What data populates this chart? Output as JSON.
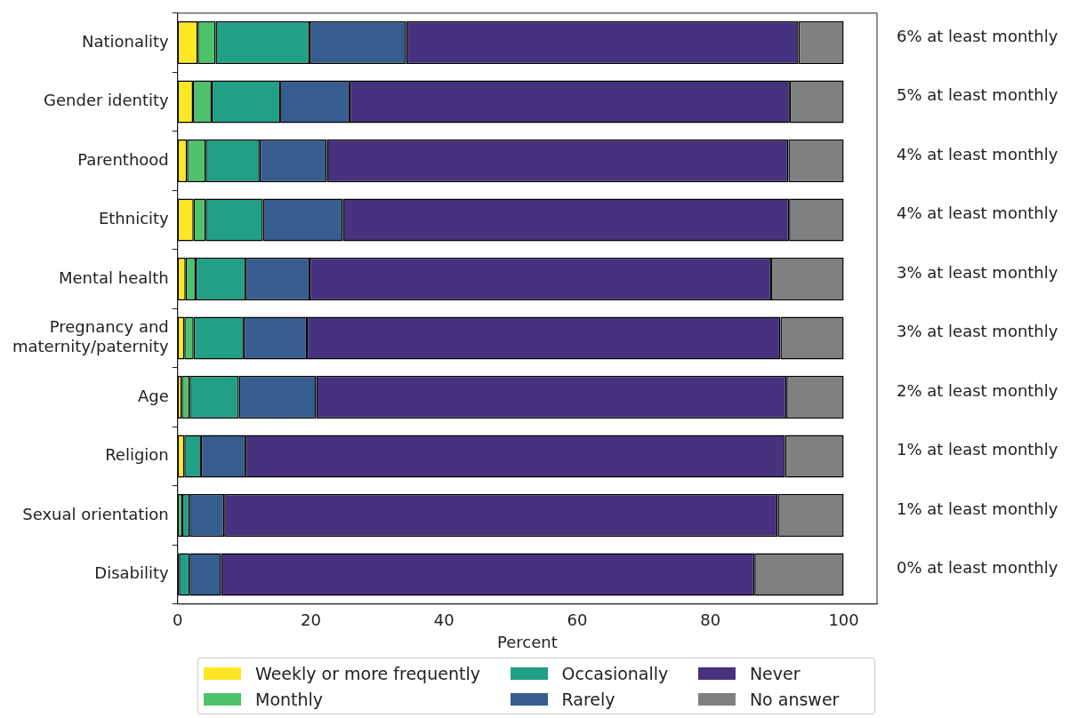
{
  "chart_data": {
    "type": "bar",
    "orientation": "horizontal",
    "stacked": true,
    "xlabel": "Percent",
    "xlim": [
      0,
      105
    ],
    "xticks": [
      0,
      20,
      40,
      60,
      80,
      100
    ],
    "grid": false,
    "legend": "bottom",
    "categories": [
      "Nationality",
      "Gender identity",
      "Parenthood",
      "Ethnicity",
      "Mental health",
      "Pregnancy and\nmaternity/paternity",
      "Age",
      "Religion",
      "Sexual orientation",
      "Disability"
    ],
    "series": [
      {
        "name": "Weekly or more frequently",
        "color": "#fde725",
        "values": [
          3.0,
          2.3,
          1.4,
          2.4,
          1.2,
          1.0,
          0.6,
          1.0,
          0,
          0
        ]
      },
      {
        "name": "Monthly",
        "color": "#4ec36b",
        "values": [
          2.7,
          2.8,
          2.8,
          1.8,
          1.5,
          1.4,
          1.2,
          0,
          0.7,
          0.2
        ]
      },
      {
        "name": "Occasionally",
        "color": "#21a085",
        "values": [
          14.1,
          10.3,
          8.1,
          8.6,
          7.5,
          7.5,
          7.4,
          2.5,
          1.1,
          1.6
        ]
      },
      {
        "name": "Rarely",
        "color": "#365d8d",
        "values": [
          14.5,
          10.4,
          10.1,
          12.0,
          9.6,
          9.5,
          11.6,
          6.7,
          5.2,
          4.7
        ]
      },
      {
        "name": "Never",
        "color": "#46327e",
        "values": [
          58.9,
          66.1,
          69.3,
          67.0,
          69.3,
          71.1,
          70.6,
          81.0,
          83.1,
          80.1
        ]
      },
      {
        "name": "No answer",
        "color": "#808080",
        "values": [
          6.8,
          8.1,
          8.3,
          8.2,
          10.9,
          9.5,
          8.6,
          8.8,
          9.9,
          13.4
        ]
      }
    ],
    "annotations": [
      "6% at least monthly",
      "5% at least monthly",
      "4% at least monthly",
      "4% at least monthly",
      "3% at least monthly",
      "3% at least monthly",
      "2% at least monthly",
      "1% at least monthly",
      "1% at least monthly",
      "0% at least monthly"
    ]
  }
}
